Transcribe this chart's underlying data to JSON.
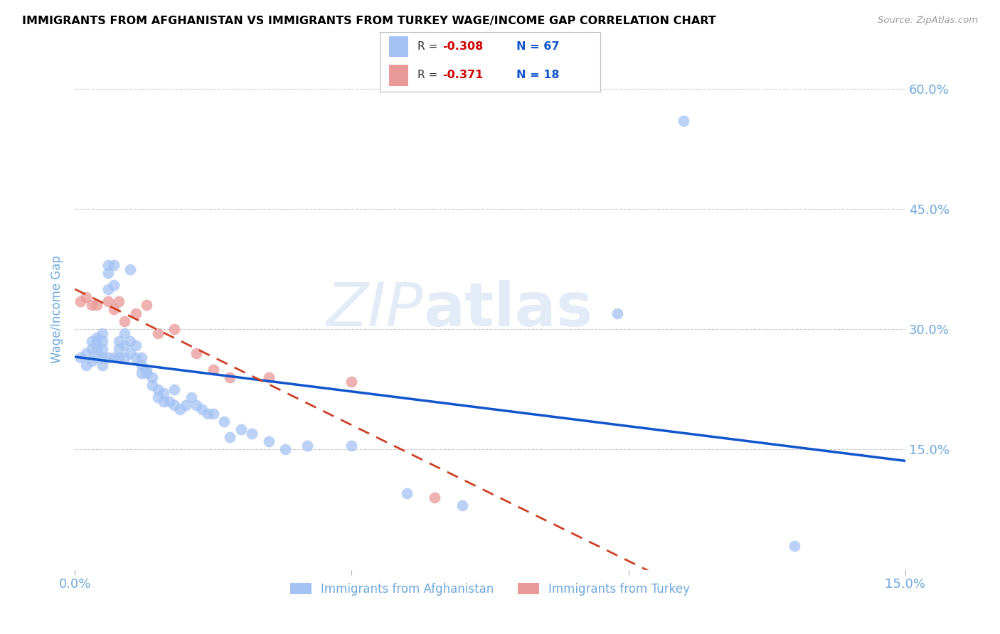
{
  "title": "IMMIGRANTS FROM AFGHANISTAN VS IMMIGRANTS FROM TURKEY WAGE/INCOME GAP CORRELATION CHART",
  "source": "Source: ZipAtlas.com",
  "ylabel": "Wage/Income Gap",
  "xlim": [
    0.0,
    0.15
  ],
  "ylim": [
    0.0,
    0.65
  ],
  "y_ticks": [
    0.0,
    0.15,
    0.3,
    0.45,
    0.6
  ],
  "y_tick_labels_right": [
    "",
    "15.0%",
    "30.0%",
    "45.0%",
    "60.0%"
  ],
  "afghanistan_color": "#a4c2f4",
  "turkey_color": "#ea9999",
  "afghanistan_line_color": "#1155cc",
  "turkey_line_color": "#cc4125",
  "legend_R_afghanistan": "-0.308",
  "legend_N_afghanistan": "67",
  "legend_R_turkey": "-0.371",
  "legend_N_turkey": "18",
  "legend_label_afghanistan": "Immigrants from Afghanistan",
  "legend_label_turkey": "Immigrants from Turkey",
  "afghanistan_x": [
    0.001,
    0.002,
    0.002,
    0.003,
    0.003,
    0.003,
    0.004,
    0.004,
    0.004,
    0.004,
    0.005,
    0.005,
    0.005,
    0.005,
    0.005,
    0.006,
    0.006,
    0.006,
    0.006,
    0.007,
    0.007,
    0.007,
    0.008,
    0.008,
    0.008,
    0.009,
    0.009,
    0.009,
    0.01,
    0.01,
    0.01,
    0.011,
    0.011,
    0.012,
    0.012,
    0.012,
    0.013,
    0.013,
    0.014,
    0.014,
    0.015,
    0.015,
    0.016,
    0.016,
    0.017,
    0.018,
    0.018,
    0.019,
    0.02,
    0.021,
    0.022,
    0.023,
    0.024,
    0.025,
    0.027,
    0.028,
    0.03,
    0.032,
    0.035,
    0.038,
    0.042,
    0.05,
    0.06,
    0.07,
    0.098,
    0.11,
    0.13
  ],
  "afghanistan_y": [
    0.265,
    0.27,
    0.255,
    0.285,
    0.275,
    0.26,
    0.29,
    0.285,
    0.275,
    0.265,
    0.295,
    0.285,
    0.275,
    0.265,
    0.255,
    0.35,
    0.38,
    0.37,
    0.265,
    0.38,
    0.355,
    0.265,
    0.285,
    0.275,
    0.265,
    0.295,
    0.28,
    0.265,
    0.375,
    0.285,
    0.27,
    0.28,
    0.265,
    0.265,
    0.255,
    0.245,
    0.25,
    0.245,
    0.24,
    0.23,
    0.225,
    0.215,
    0.22,
    0.21,
    0.21,
    0.225,
    0.205,
    0.2,
    0.205,
    0.215,
    0.205,
    0.2,
    0.195,
    0.195,
    0.185,
    0.165,
    0.175,
    0.17,
    0.16,
    0.15,
    0.155,
    0.155,
    0.095,
    0.08,
    0.32,
    0.56,
    0.03
  ],
  "turkey_x": [
    0.001,
    0.002,
    0.003,
    0.004,
    0.006,
    0.007,
    0.008,
    0.009,
    0.011,
    0.013,
    0.015,
    0.018,
    0.022,
    0.025,
    0.028,
    0.035,
    0.05,
    0.065
  ],
  "turkey_y": [
    0.335,
    0.34,
    0.33,
    0.33,
    0.335,
    0.325,
    0.335,
    0.31,
    0.32,
    0.33,
    0.295,
    0.3,
    0.27,
    0.25,
    0.24,
    0.24,
    0.235,
    0.09
  ],
  "grid_color": "#cccccc",
  "background_color": "#ffffff",
  "title_color": "#000000",
  "axis_color": "#6fa8dc",
  "source_color": "#999999"
}
